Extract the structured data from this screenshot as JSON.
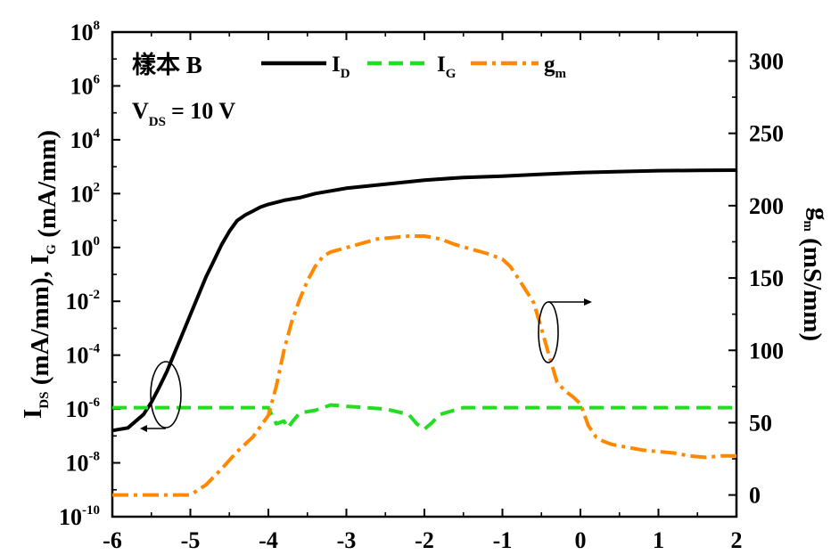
{
  "chart_data": {
    "type": "line",
    "annotation": {
      "sample": "樣本 B",
      "vds_main": "V",
      "vds_sub": "DS",
      "vds_value": "= 10 V"
    },
    "xlabel": "",
    "x_ticks": [
      "-6",
      "-5",
      "-4",
      "-3",
      "-2",
      "-1",
      "0",
      "1",
      "2"
    ],
    "xlim": [
      -6,
      2
    ],
    "y_left": {
      "label_parts": [
        {
          "t": "I",
          "sub": false
        },
        {
          "t": "DS",
          "sub": true
        },
        {
          "t": " (mA/mm), I",
          "sub": false
        },
        {
          "t": "G",
          "sub": true
        },
        {
          "t": " (mA/mm)",
          "sub": false
        }
      ],
      "scale": "log",
      "ylim_exp": [
        -10,
        8
      ],
      "tick_exponents": [
        -10,
        -8,
        -6,
        -4,
        -2,
        0,
        2,
        4,
        6,
        8
      ],
      "tick_base": "10"
    },
    "y_right": {
      "label_parts": [
        {
          "t": "g",
          "sub": false
        },
        {
          "t": "m",
          "sub": true
        },
        {
          "t": " (mS/mm)",
          "sub": false
        }
      ],
      "ylim": [
        -15,
        320
      ],
      "ticks": [
        "0",
        "50",
        "100",
        "150",
        "200",
        "250",
        "300"
      ]
    },
    "legend": {
      "placement": "top",
      "entries": [
        {
          "main": "I",
          "sub": "D",
          "style": "solid",
          "color": "#000000"
        },
        {
          "main": "I",
          "sub": "G",
          "style": "dash",
          "color": "#22dd22"
        },
        {
          "main": "g",
          "sub": "m",
          "style": "dashdot",
          "color": "#ff8800"
        }
      ]
    },
    "series": [
      {
        "name": "I_D",
        "axis": "left",
        "color": "#000000",
        "style": "solid",
        "x": [
          -6.0,
          -5.8,
          -5.6,
          -5.5,
          -5.4,
          -5.3,
          -5.2,
          -5.1,
          -5.0,
          -4.9,
          -4.8,
          -4.7,
          -4.6,
          -4.5,
          -4.4,
          -4.3,
          -4.2,
          -4.1,
          -4.0,
          -3.8,
          -3.6,
          -3.4,
          -3.2,
          -3.0,
          -2.5,
          -2.0,
          -1.5,
          -1.0,
          -0.5,
          0.0,
          0.5,
          1.0,
          1.5,
          2.0
        ],
        "y_log10": [
          -6.8,
          -6.7,
          -6.2,
          -5.75,
          -5.2,
          -4.6,
          -3.9,
          -3.2,
          -2.5,
          -1.8,
          -1.1,
          -0.5,
          0.1,
          0.6,
          1.0,
          1.2,
          1.35,
          1.5,
          1.6,
          1.75,
          1.85,
          2.0,
          2.1,
          2.2,
          2.35,
          2.5,
          2.6,
          2.65,
          2.72,
          2.78,
          2.82,
          2.85,
          2.86,
          2.87
        ]
      },
      {
        "name": "I_G",
        "axis": "left",
        "color": "#22dd22",
        "style": "dash",
        "x": [
          -6.0,
          -5.0,
          -4.0,
          -3.9,
          -3.8,
          -3.75,
          -3.7,
          -3.6,
          -3.4,
          -3.2,
          -3.0,
          -2.5,
          -2.2,
          -2.1,
          -2.0,
          -1.9,
          -1.8,
          -1.5,
          -1.0,
          0.0,
          1.0,
          2.0
        ],
        "y_log10": [
          -5.95,
          -5.95,
          -5.95,
          -6.55,
          -6.45,
          -6.7,
          -6.5,
          -6.15,
          -6.05,
          -5.85,
          -5.9,
          -6.0,
          -6.2,
          -6.55,
          -6.75,
          -6.5,
          -6.2,
          -5.95,
          -5.95,
          -5.95,
          -5.95,
          -5.95
        ]
      },
      {
        "name": "g_m",
        "axis": "right",
        "color": "#ff8800",
        "style": "dashdot",
        "x": [
          -6.0,
          -5.5,
          -5.0,
          -4.8,
          -4.6,
          -4.4,
          -4.2,
          -4.0,
          -3.9,
          -3.8,
          -3.7,
          -3.6,
          -3.5,
          -3.4,
          -3.3,
          -3.2,
          -3.0,
          -2.8,
          -2.6,
          -2.4,
          -2.2,
          -2.0,
          -1.8,
          -1.6,
          -1.4,
          -1.2,
          -1.0,
          -0.9,
          -0.8,
          -0.6,
          -0.5,
          -0.4,
          -0.3,
          -0.2,
          -0.1,
          0.0,
          0.1,
          0.2,
          0.3,
          0.4,
          0.6,
          0.8,
          1.0,
          1.2,
          1.4,
          1.6,
          1.8,
          2.0
        ],
        "y": [
          0,
          0,
          0,
          7,
          18,
          30,
          40,
          55,
          75,
          100,
          120,
          135,
          148,
          158,
          165,
          168,
          171,
          174,
          177,
          178,
          179,
          179,
          177,
          173,
          170,
          167,
          163,
          158,
          150,
          133,
          115,
          96,
          78,
          72,
          68,
          63,
          48,
          40,
          37,
          35,
          33,
          31,
          30,
          29,
          27,
          26,
          27,
          27
        ]
      }
    ]
  }
}
